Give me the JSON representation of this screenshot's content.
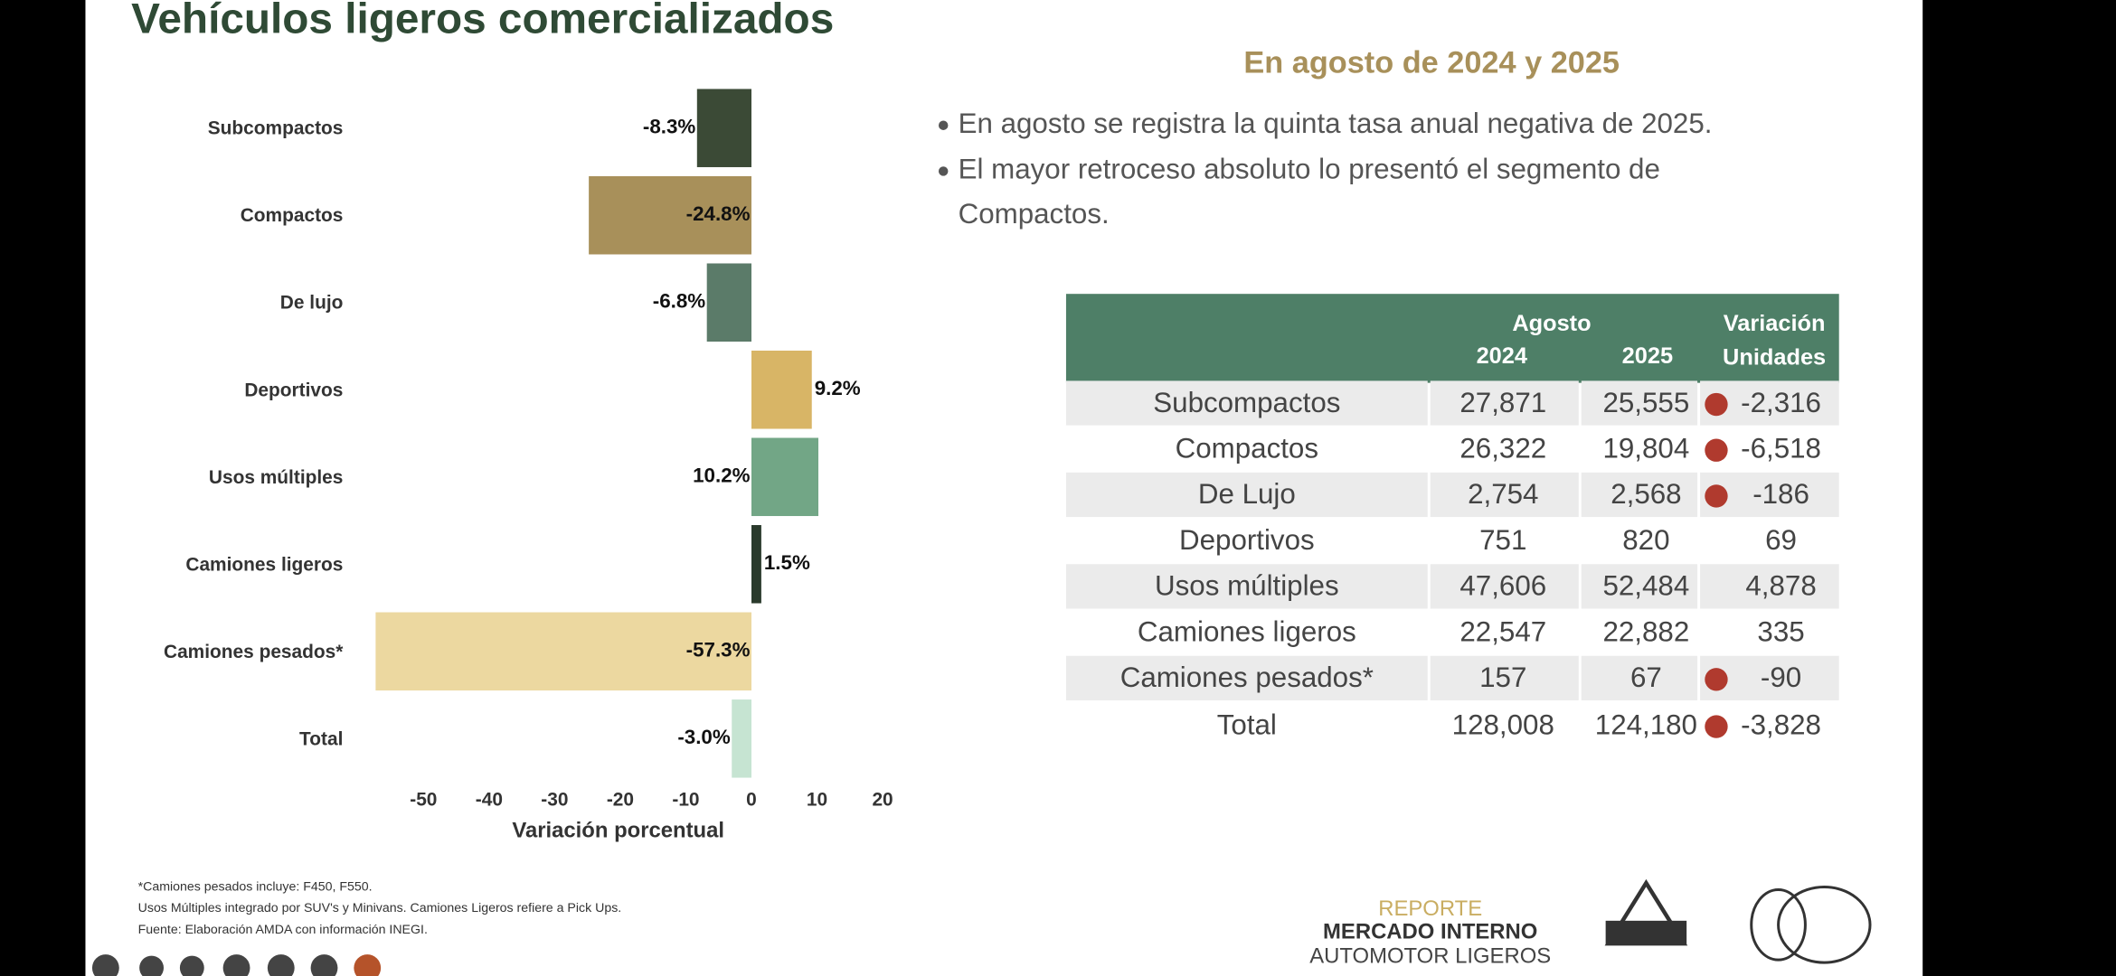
{
  "chart_data": {
    "type": "bar",
    "orientation": "horizontal",
    "title": "Vehículos ligeros comercializados",
    "categories": [
      "Subcompactos",
      "Compactos",
      "De lujo",
      "Deportivos",
      "Usos múltiples",
      "Camiones ligeros",
      "Camiones pesados*",
      "Total"
    ],
    "values": [
      -8.3,
      -24.8,
      -6.8,
      9.2,
      10.2,
      1.5,
      -57.3,
      -3.0
    ],
    "value_labels": [
      "-8.3%",
      "-24.8%",
      "-6.8%",
      "9.2%",
      "10.2%",
      "1.5%",
      "-57.3%",
      "-3.0%"
    ],
    "colors": [
      "#3b4a36",
      "#a8905a",
      "#5b7b69",
      "#d8b566",
      "#72a686",
      "#2a3a2c",
      "#ecd8a0",
      "#c6e4d2"
    ],
    "xlim": [
      -60,
      20
    ],
    "xticks": [
      -50,
      -40,
      -30,
      -20,
      -10,
      0,
      10,
      20
    ],
    "xlabel": "Variación porcentual"
  },
  "subtitle": "En agosto de 2024 y 2025",
  "bullets": [
    "En agosto se registra la quinta tasa anual negativa de 2025.",
    "El mayor retroceso absoluto lo presentó el segmento de",
    "Compactos."
  ],
  "table": {
    "header": [
      "Agosto",
      "2024",
      "2025",
      "Variación",
      "Unidades"
    ],
    "rows": [
      [
        "Subcompactos",
        "27,871",
        "25,555",
        "-2,316"
      ],
      [
        "Compactos",
        "26,322",
        "19,804",
        "-6,518"
      ],
      [
        "De Lujo",
        "2,754",
        "2,568",
        "-186"
      ],
      [
        "Deportivos",
        "751",
        "820",
        "69"
      ],
      [
        "Usos múltiples",
        "47,606",
        "52,484",
        "4,878"
      ],
      [
        "Camiones ligeros",
        "22,547",
        "22,882",
        "335"
      ],
      [
        "Camiones pesados*",
        "157",
        "67",
        "-90"
      ],
      [
        "Total",
        "128,008",
        "124,180",
        "-3,828"
      ]
    ]
  },
  "footnotes": [
    "*Camiones pesados incluye: F450, F550.",
    "Usos Múltiples integrado por SUV's y Minivans. Camiones Ligeros refiere a Pick Ups.",
    "Fuente: Elaboración AMDA con información INEGI."
  ],
  "logo": [
    "REPORTE",
    "MERCADO INTERNO",
    "AUTOMOTOR LIGEROS"
  ]
}
